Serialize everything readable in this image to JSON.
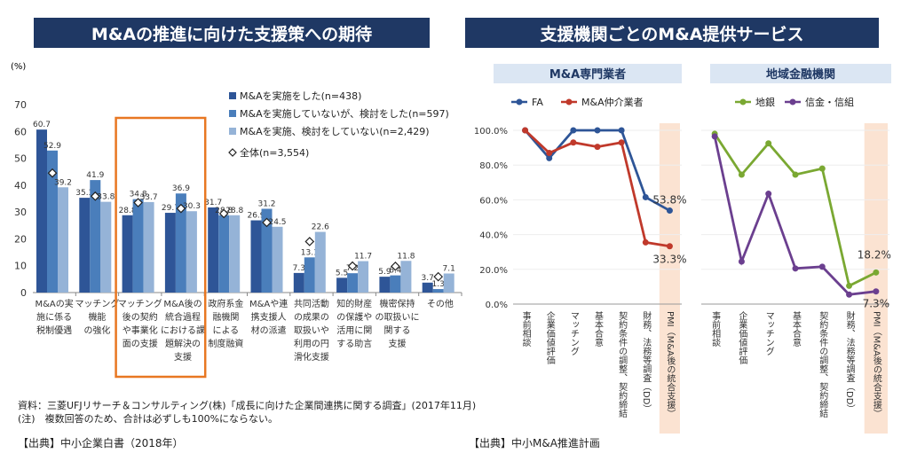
{
  "header": {
    "left_title": "M&Aの推進に向けた支援策への期待",
    "right_title": "支援機関ごとのM&A提供サービス"
  },
  "footer": {
    "source_note": "資料：三菱UFJリサーチ＆コンサルティング(株)「成長に向けた企業間連携に関する調査」(2017年11月)",
    "note": "(注)　複数回答のため、合計は必ずしも100%にならない。",
    "left_citation": "【出典】中小企業白書（2018年）",
    "right_citation": "【出典】中小M&A推進計画"
  },
  "colors": {
    "banner": "#1f3864",
    "series1": "#2e5597",
    "series2": "#4a7ebb",
    "series3": "#95b3d7",
    "highlight": "#e87722",
    "fa": "#2e5597",
    "broker": "#c0392b",
    "chigin": "#7aa832",
    "shinkin": "#6b3f8f",
    "pmi_band": "#fbe3d2"
  },
  "chart_data": [
    {
      "type": "bar",
      "ylabel": "(%)",
      "ylim": [
        0,
        70
      ],
      "yticks": [
        0,
        10,
        20,
        30,
        40,
        50,
        60,
        70
      ],
      "categories": [
        [
          "M&Aの実",
          "施に係る",
          "税制優遇"
        ],
        [
          "マッチング",
          "機能",
          "の強化"
        ],
        [
          "マッチング",
          "後の契約",
          "や事業化",
          "面の支援"
        ],
        [
          "M&A後の",
          "統合過程",
          "における課",
          "題解決の",
          "支援"
        ],
        [
          "政府系金",
          "融機関",
          "による",
          "制度融資"
        ],
        [
          "M&Aや連",
          "携支援人",
          "材の派遣"
        ],
        [
          "共同活動",
          "の成果の",
          "取扱いや",
          "利用の円",
          "滑化支援"
        ],
        [
          "知的財産",
          "の保護や",
          "活用に関",
          "する助言"
        ],
        [
          "機密保持",
          "の取扱いに",
          "関する",
          "支援"
        ],
        [
          "その他"
        ]
      ],
      "series": [
        {
          "name": "M&Aを実施をした(n=438)",
          "values": [
            60.7,
            35.3,
            28.8,
            29.7,
            31.7,
            26.9,
            7.3,
            5.5,
            5.9,
            3.7
          ]
        },
        {
          "name": "M&Aを実施していないが、検討をした(n=597)",
          "values": [
            52.9,
            41.9,
            34.8,
            36.9,
            28.8,
            31.2,
            13.1,
            7.2,
            6.4,
            1.3
          ]
        },
        {
          "name": "M&Aを実施、検討をしていない(n=2,429)",
          "values": [
            39.2,
            33.8,
            33.7,
            30.3,
            28.8,
            24.5,
            22.6,
            11.7,
            11.8,
            7.1
          ]
        }
      ],
      "overall": {
        "name": "全体(n=3,554)",
        "values": [
          44.5,
          35.9,
          33.5,
          31.3,
          29.4,
          26.1,
          19.0,
          9.9,
          9.8,
          5.9
        ]
      },
      "value_labels": [
        [
          "60.7",
          "52.9",
          "39.2"
        ],
        [
          "35.3",
          "41.9",
          "33.8"
        ],
        [
          "28.8",
          "34.8",
          "33.7"
        ],
        [
          "29.7",
          "36.9",
          "30.3"
        ],
        [
          "31.7",
          "28.8",
          "28.8"
        ],
        [
          "26.9",
          "31.2",
          "24.5"
        ],
        [
          "7.3",
          "13.1",
          "22.6"
        ],
        [
          "5.5",
          "7.2",
          "11.7"
        ],
        [
          "5.9",
          "6.4",
          "11.8"
        ],
        [
          "3.7",
          "1.3",
          "7.1"
        ]
      ],
      "highlight_categories": [
        2,
        3
      ]
    },
    {
      "type": "line",
      "title": "M&A専門業者",
      "ylim": [
        0,
        100
      ],
      "yticks": [
        "0.0%",
        "20.0%",
        "40.0%",
        "60.0%",
        "80.0%",
        "100.0%"
      ],
      "categories": [
        "事前相談",
        "企業価値評価",
        "マッチング",
        "基本合意",
        "契約条件の調整、契約締結",
        "財務、法務等調査（DD）",
        "PMI（M&A後の統合支援）"
      ],
      "series": [
        {
          "name": "FA",
          "values": [
            100,
            84,
            100,
            100,
            100,
            61.5,
            53.8
          ]
        },
        {
          "name": "M&A仲介業者",
          "values": [
            100,
            87,
            93,
            90.5,
            93,
            35.5,
            33.3
          ]
        }
      ],
      "annotations": [
        "53.8%",
        "33.3%"
      ],
      "highlight_category": "PMI（M&A後の統合支援）"
    },
    {
      "type": "line",
      "title": "地域金融機関",
      "ylim": [
        0,
        100
      ],
      "yticks": [
        "0.0%",
        "20.0%",
        "40.0%",
        "60.0%",
        "80.0%",
        "100.0%"
      ],
      "categories": [
        "事前相談",
        "企業価値評価",
        "マッチング",
        "基本合意",
        "契約条件の調整、契約締結",
        "財務、法務等調査（DD）",
        "PMI（M&A後の統合支援）"
      ],
      "series": [
        {
          "name": "地銀",
          "values": [
            98,
            74.5,
            92.5,
            74.5,
            78,
            10.5,
            18.2
          ]
        },
        {
          "name": "信金・信組",
          "values": [
            96.5,
            24.5,
            63.5,
            20.5,
            21.5,
            5.5,
            7.3
          ]
        }
      ],
      "annotations": [
        "18.2%",
        "7.3%"
      ],
      "highlight_category": "PMI（M&A後の統合支援）"
    }
  ]
}
